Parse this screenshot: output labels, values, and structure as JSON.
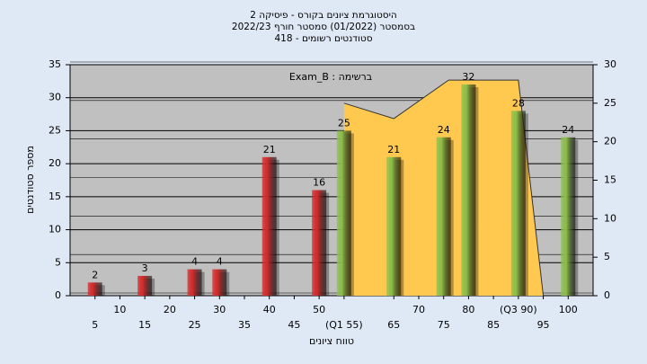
{
  "chart_data": {
    "type": "bar",
    "title": [
      "היסטוגרמת ציונים בקורס - פיסיקה 2",
      "בסמסטר (01/2022) סמסטר חורף 2022/23",
      "סטודנטים רשומים - 418"
    ],
    "annotation": "ברשימה : Exam_B",
    "xlabel": "טווח ציונים",
    "ylabel": "מספר סטודנטים",
    "xlim": [
      0,
      105
    ],
    "xticks": [
      5,
      10,
      15,
      20,
      25,
      30,
      35,
      40,
      45,
      50,
      {
        "value": 55,
        "label": "(Q1 55)"
      },
      65,
      70,
      75,
      80,
      85,
      {
        "value": 90,
        "label": "(Q3 90)"
      },
      95,
      100
    ],
    "ylim": [
      0,
      35
    ],
    "yticks": [
      0,
      5,
      10,
      15,
      20,
      25,
      30,
      35
    ],
    "y2lim": [
      0,
      30
    ],
    "y2ticks": [
      0,
      5,
      10,
      15,
      20,
      25,
      30
    ],
    "grid": true,
    "bars": {
      "x": [
        5,
        15,
        25,
        30,
        40,
        50,
        55,
        65,
        75,
        80,
        90,
        100
      ],
      "values": [
        2,
        3,
        4,
        4,
        21,
        16,
        25,
        21,
        24,
        32,
        28,
        24
      ],
      "colors": [
        "#d62b2b",
        "#d62b2b",
        "#d62b2b",
        "#d62b2b",
        "#d62b2b",
        "#d62b2b",
        "#8dc04a",
        "#8dc04a",
        "#8dc04a",
        "#8dc04a",
        "#8dc04a",
        "#8dc04a"
      ]
    },
    "area": {
      "axis": "y2",
      "color": "#ffc94f",
      "x": [
        55,
        65,
        76,
        90,
        95
      ],
      "values": [
        25,
        23,
        28,
        28,
        0
      ]
    }
  }
}
